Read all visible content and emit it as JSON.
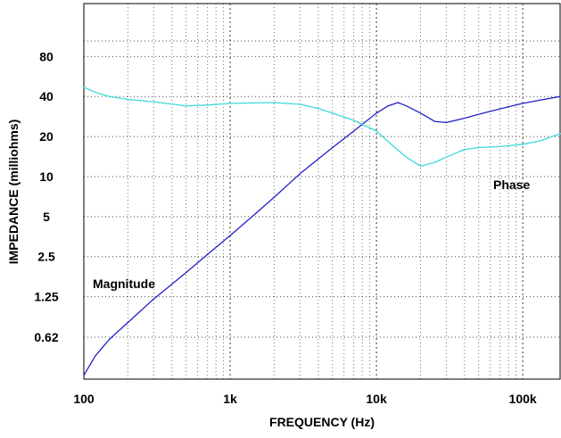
{
  "chart_data": {
    "type": "line",
    "xlabel": "FREQUENCY (Hz)",
    "ylabel": "IMPEDANCE (milliohms)",
    "x_scale": "log",
    "xlim": [
      100,
      180000
    ],
    "ylim": [
      0.3,
      200
    ],
    "x_ticks": [
      {
        "value": 100,
        "label": "100"
      },
      {
        "value": 1000,
        "label": "1k"
      },
      {
        "value": 10000,
        "label": "10k"
      },
      {
        "value": 100000,
        "label": "100k"
      }
    ],
    "y_ticks": [
      {
        "value": 80,
        "label": "80"
      },
      {
        "value": 40,
        "label": "40"
      },
      {
        "value": 20,
        "label": "20"
      },
      {
        "value": 10,
        "label": "10"
      },
      {
        "value": 5,
        "label": "5"
      },
      {
        "value": 2.5,
        "label": "2.5"
      },
      {
        "value": 1.25,
        "label": "1.25"
      },
      {
        "value": 0.62,
        "label": "0.62"
      }
    ],
    "grid": true,
    "annotations": [
      {
        "text": "Magnitude",
        "series": "magnitude"
      },
      {
        "text": "Phase",
        "series": "phase"
      }
    ],
    "series": [
      {
        "name": "Magnitude",
        "color": "#2020c8",
        "x": [
          100,
          120,
          150,
          200,
          300,
          500,
          700,
          1000,
          1500,
          2000,
          3000,
          5000,
          7000,
          10000,
          12000,
          14000,
          16000,
          20000,
          25000,
          30000,
          40000,
          60000,
          80000,
          100000,
          130000,
          180000
        ],
        "y": [
          0.32,
          0.45,
          0.6,
          0.8,
          1.2,
          1.9,
          2.6,
          3.6,
          5.3,
          7.0,
          10.5,
          16.5,
          22,
          30,
          34,
          36,
          34,
          30,
          26,
          25.5,
          27.5,
          31,
          33.5,
          35.5,
          37.5,
          40
        ]
      },
      {
        "name": "Phase",
        "color": "#40d8d8",
        "x": [
          100,
          120,
          150,
          200,
          300,
          500,
          700,
          1000,
          2000,
          3000,
          4000,
          5000,
          7000,
          10000,
          13000,
          16000,
          20000,
          25000,
          30000,
          40000,
          50000,
          70000,
          100000,
          130000,
          180000
        ],
        "y": [
          47,
          43,
          40,
          38,
          36.5,
          34,
          34.5,
          35.5,
          36,
          35,
          32.5,
          30,
          26.5,
          22,
          17,
          14,
          12,
          12.8,
          14,
          16,
          16.5,
          16.8,
          17.5,
          18.5,
          21
        ]
      }
    ]
  }
}
